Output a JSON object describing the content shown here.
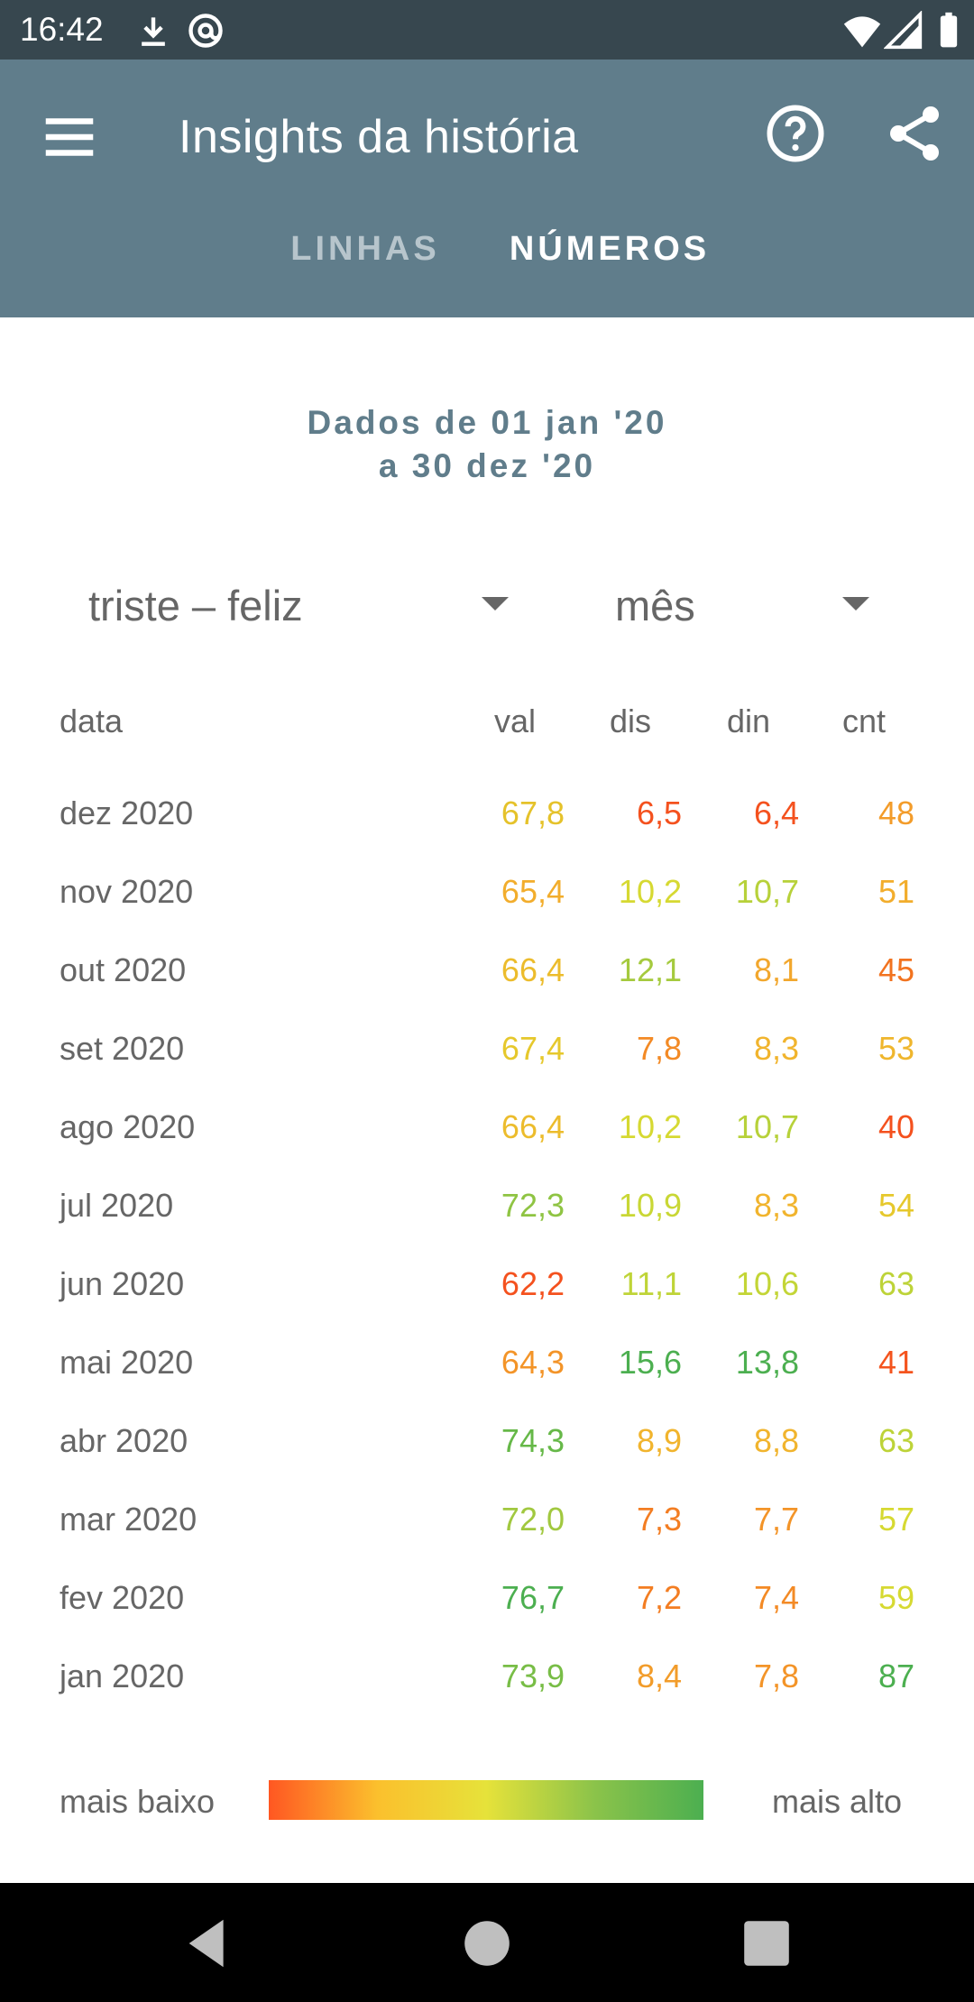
{
  "status_bar": {
    "time": "16:42",
    "icons": [
      "download-icon",
      "at-sign-icon",
      "wifi-icon",
      "signal-icon",
      "battery-icon"
    ]
  },
  "app_bar": {
    "title": "Insights da história",
    "menu_icon": "hamburger-menu-icon",
    "help_icon": "help-circle-icon",
    "share_icon": "share-icon",
    "background": "#607d8b"
  },
  "tabs": [
    {
      "label": "LINHAS",
      "selected": false
    },
    {
      "label": "NÚMEROS",
      "selected": true
    }
  ],
  "date_range": {
    "line1": "Dados de 01 jan '20",
    "line2": "a 30 dez '20"
  },
  "filters": {
    "scale": "triste – feliz",
    "period": "mês"
  },
  "table": {
    "headers": {
      "date": "data",
      "val": "val",
      "dis": "dis",
      "din": "din",
      "cnt": "cnt"
    },
    "rows": [
      {
        "date": "dez 2020",
        "val": "67,8",
        "val_color": "#e5c22a",
        "dis": "6,5",
        "dis_color": "#f4511e",
        "din": "6,4",
        "din_color": "#f4511e",
        "cnt": "48",
        "cnt_color": "#f39c2a"
      },
      {
        "date": "nov 2020",
        "val": "65,4",
        "val_color": "#f2ad2c",
        "dis": "10,2",
        "dis_color": "#d6d932",
        "din": "10,7",
        "din_color": "#b7d13a",
        "cnt": "51",
        "cnt_color": "#f2ad2c"
      },
      {
        "date": "out 2020",
        "val": "66,4",
        "val_color": "#ecbc2c",
        "dis": "12,1",
        "dis_color": "#a5ca3e",
        "din": "8,1",
        "din_color": "#f2a72d",
        "cnt": "45",
        "cnt_color": "#f2731f"
      },
      {
        "date": "set 2020",
        "val": "67,4",
        "val_color": "#e6c82c",
        "dis": "7,8",
        "dis_color": "#f38a25",
        "din": "8,3",
        "din_color": "#f1b42d",
        "cnt": "53",
        "cnt_color": "#efb62d"
      },
      {
        "date": "ago 2020",
        "val": "66,4",
        "val_color": "#ecbc2c",
        "dis": "10,2",
        "dis_color": "#d6d932",
        "din": "10,7",
        "din_color": "#b7d13a",
        "cnt": "40",
        "cnt_color": "#f4511e"
      },
      {
        "date": "jul 2020",
        "val": "72,3",
        "val_color": "#8fc443",
        "dis": "10,9",
        "dis_color": "#c9d735",
        "din": "8,3",
        "din_color": "#f1b42d",
        "cnt": "54",
        "cnt_color": "#e6c82c"
      },
      {
        "date": "jun 2020",
        "val": "62,2",
        "val_color": "#f4511e",
        "dis": "11,1",
        "dis_color": "#bfd438",
        "din": "10,6",
        "din_color": "#c3d536",
        "cnt": "63",
        "cnt_color": "#bdd338"
      },
      {
        "date": "mai 2020",
        "val": "64,3",
        "val_color": "#f39428",
        "dis": "15,6",
        "dis_color": "#4caf50",
        "din": "13,8",
        "din_color": "#4caf50",
        "cnt": "41",
        "cnt_color": "#f4541e"
      },
      {
        "date": "abr 2020",
        "val": "74,3",
        "val_color": "#66b848",
        "dis": "8,9",
        "dis_color": "#f1b42d",
        "din": "8,8",
        "din_color": "#f1b42d",
        "cnt": "63",
        "cnt_color": "#bdd338"
      },
      {
        "date": "mar 2020",
        "val": "72,0",
        "val_color": "#a1c83f",
        "dis": "7,3",
        "dis_color": "#f37d22",
        "din": "7,7",
        "din_color": "#f39428",
        "cnt": "57",
        "cnt_color": "#d6d932"
      },
      {
        "date": "fev 2020",
        "val": "76,7",
        "val_color": "#4caf50",
        "dis": "7,2",
        "dis_color": "#f37d22",
        "din": "7,4",
        "din_color": "#f38a25",
        "cnt": "59",
        "cnt_color": "#d6d932"
      },
      {
        "date": "jan 2020",
        "val": "73,9",
        "val_color": "#78bd46",
        "dis": "8,4",
        "dis_color": "#f29c2a",
        "din": "7,8",
        "din_color": "#f39428",
        "cnt": "87",
        "cnt_color": "#4caf50"
      }
    ]
  },
  "legend": {
    "low_label": "mais baixo",
    "high_label": "mais alto",
    "gradient_colors": [
      "#ff5722",
      "#fbc02d",
      "#e6e23a",
      "#8bc34a",
      "#4caf50"
    ]
  },
  "nav_bar": {
    "icons": [
      "back-triangle-icon",
      "home-circle-icon",
      "recents-square-icon"
    ]
  }
}
